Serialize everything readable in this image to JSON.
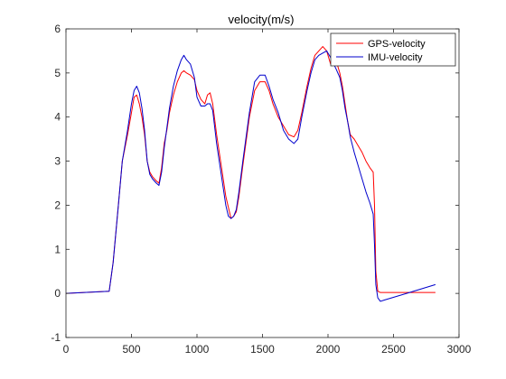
{
  "chart_data": {
    "type": "line",
    "title": "velocity(m/s)",
    "xlabel": "",
    "ylabel": "",
    "xlim": [
      0,
      3000
    ],
    "ylim": [
      -1,
      6
    ],
    "xticks": [
      0,
      500,
      1000,
      1500,
      2000,
      2500,
      3000
    ],
    "yticks": [
      -1,
      0,
      1,
      2,
      3,
      4,
      5,
      6
    ],
    "grid": false,
    "legend_position": "top-right",
    "series": [
      {
        "name": "GPS-velocity",
        "color": "#ff0000",
        "x": [
          0,
          330,
          360,
          400,
          430,
          470,
          500,
          520,
          540,
          560,
          580,
          600,
          620,
          640,
          660,
          690,
          710,
          730,
          750,
          770,
          790,
          820,
          850,
          880,
          900,
          920,
          950,
          980,
          1000,
          1030,
          1060,
          1080,
          1100,
          1120,
          1150,
          1180,
          1200,
          1220,
          1240,
          1260,
          1280,
          1300,
          1320,
          1350,
          1400,
          1440,
          1480,
          1520,
          1550,
          1580,
          1620,
          1660,
          1700,
          1740,
          1770,
          1800,
          1840,
          1870,
          1900,
          1930,
          1960,
          1990,
          2020,
          2060,
          2090,
          2110,
          2130,
          2150,
          2170,
          2200,
          2230,
          2260,
          2290,
          2320,
          2345,
          2355,
          2365,
          2380,
          2400,
          2430,
          2600,
          2820
        ],
        "y": [
          0.0,
          0.05,
          0.7,
          2.0,
          3.0,
          3.6,
          4.1,
          4.45,
          4.5,
          4.3,
          4.0,
          3.6,
          3.0,
          2.75,
          2.65,
          2.55,
          2.5,
          2.85,
          3.4,
          3.7,
          4.1,
          4.5,
          4.8,
          5.0,
          5.05,
          5.0,
          4.95,
          4.85,
          4.6,
          4.4,
          4.3,
          4.5,
          4.55,
          4.3,
          3.6,
          3.0,
          2.6,
          2.2,
          1.95,
          1.7,
          1.75,
          1.85,
          2.2,
          2.9,
          4.0,
          4.6,
          4.8,
          4.8,
          4.6,
          4.3,
          4.0,
          3.8,
          3.6,
          3.55,
          3.7,
          4.1,
          4.7,
          5.1,
          5.4,
          5.5,
          5.6,
          5.5,
          5.2,
          5.3,
          5.0,
          4.7,
          4.3,
          3.9,
          3.6,
          3.5,
          3.35,
          3.2,
          3.0,
          2.85,
          2.75,
          2.0,
          0.5,
          0.05,
          0.02,
          0.02,
          0.02,
          0.02
        ]
      },
      {
        "name": "IMU-velocity",
        "color": "#0000cc",
        "x": [
          0,
          330,
          360,
          400,
          430,
          470,
          500,
          520,
          540,
          560,
          580,
          600,
          620,
          640,
          660,
          690,
          710,
          730,
          750,
          770,
          790,
          820,
          850,
          880,
          900,
          920,
          950,
          980,
          1000,
          1030,
          1060,
          1080,
          1100,
          1120,
          1150,
          1180,
          1200,
          1220,
          1240,
          1260,
          1280,
          1300,
          1320,
          1350,
          1400,
          1440,
          1480,
          1520,
          1550,
          1580,
          1620,
          1660,
          1700,
          1740,
          1770,
          1800,
          1840,
          1870,
          1900,
          1930,
          1960,
          1990,
          2020,
          2060,
          2090,
          2110,
          2130,
          2150,
          2170,
          2200,
          2230,
          2260,
          2290,
          2320,
          2345,
          2355,
          2365,
          2380,
          2400,
          2430,
          2600,
          2820
        ],
        "y": [
          0.0,
          0.05,
          0.7,
          2.0,
          3.0,
          3.7,
          4.3,
          4.6,
          4.7,
          4.55,
          4.2,
          3.7,
          3.0,
          2.7,
          2.6,
          2.5,
          2.45,
          2.75,
          3.3,
          3.75,
          4.2,
          4.7,
          5.05,
          5.3,
          5.4,
          5.3,
          5.2,
          4.9,
          4.45,
          4.25,
          4.25,
          4.3,
          4.3,
          4.15,
          3.4,
          2.8,
          2.4,
          2.0,
          1.75,
          1.7,
          1.75,
          1.9,
          2.3,
          3.0,
          4.1,
          4.8,
          4.95,
          4.95,
          4.7,
          4.4,
          4.1,
          3.7,
          3.5,
          3.4,
          3.5,
          4.0,
          4.6,
          5.0,
          5.3,
          5.4,
          5.45,
          5.5,
          5.35,
          5.1,
          4.9,
          4.6,
          4.2,
          3.9,
          3.55,
          3.2,
          2.9,
          2.6,
          2.3,
          2.05,
          1.8,
          1.1,
          0.2,
          -0.1,
          -0.18,
          -0.15,
          0.0,
          0.2
        ]
      }
    ]
  }
}
